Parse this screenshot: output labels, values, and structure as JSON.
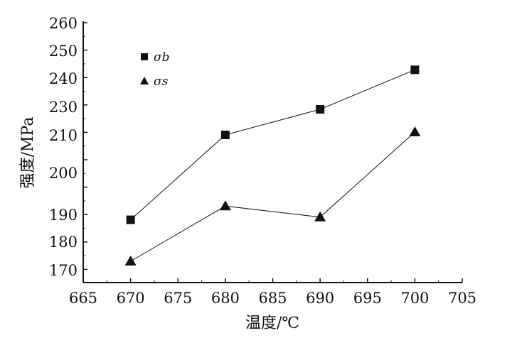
{
  "chart_data": {
    "type": "line",
    "xlabel": "温度/℃",
    "ylabel": "强度/MPa",
    "x_ticks": [
      665,
      670,
      675,
      680,
      685,
      690,
      695,
      700,
      705
    ],
    "y_tick_labels": [
      "260",
      "250",
      "240",
      "230",
      "210",
      "200",
      "190",
      "180",
      "170"
    ],
    "xlim": [
      665,
      705
    ],
    "ylim": [
      165,
      260
    ],
    "grid": false,
    "legend_position": "top-left",
    "x": [
      670,
      680,
      690,
      700
    ],
    "series": [
      {
        "name": "σb",
        "marker": "square",
        "values": [
          188,
          210,
          228,
          243
        ]
      },
      {
        "name": "σs",
        "marker": "triangle",
        "values": [
          173,
          192,
          189,
          212
        ]
      }
    ],
    "colors": {
      "ink": "#111111"
    }
  }
}
